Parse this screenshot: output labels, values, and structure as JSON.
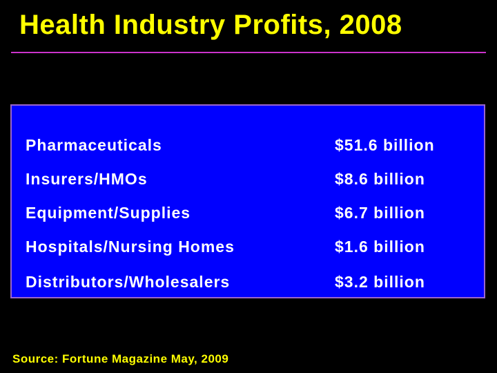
{
  "slide": {
    "title": "Health Industry Profits, 2008",
    "source": "Source: Fortune Magazine May, 2009"
  },
  "table": {
    "rows": [
      {
        "label": "Pharmaceuticals",
        "value": "$51.6 billion"
      },
      {
        "label": "Insurers/HMOs",
        "value": "$8.6 billion"
      },
      {
        "label": "Equipment/Supplies",
        "value": "$6.7 billion"
      },
      {
        "label": "Hospitals/Nursing Homes",
        "value": "$1.6 billion"
      },
      {
        "label": "Distributors/Wholesalers",
        "value": "$3.2 billion"
      }
    ]
  },
  "colors": {
    "background": "#000000",
    "title": "#ffff00",
    "rule": "#cc33cc",
    "panel": "#0000ff",
    "panel_border": "#9966cc",
    "row_text": "#ffffff",
    "source": "#ffff00"
  }
}
